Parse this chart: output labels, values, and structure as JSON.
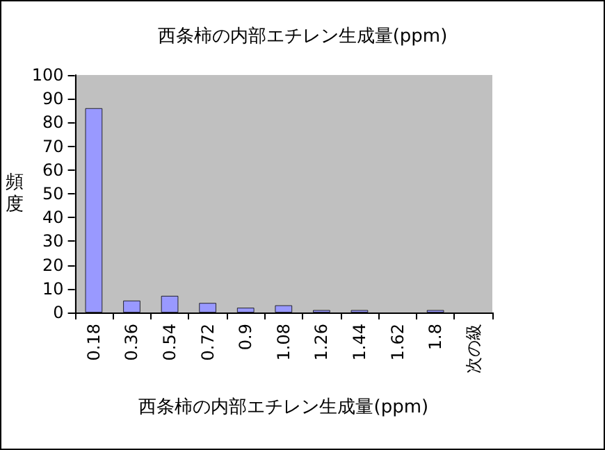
{
  "chart_data": {
    "type": "bar",
    "title": "西条柿の内部エチレン生成量(ppm)",
    "xlabel": "西条柿の内部エチレン生成量(ppm)",
    "ylabel": "頻度",
    "categories": [
      "0.18",
      "0.36",
      "0.54",
      "0.72",
      "0.9",
      "1.08",
      "1.26",
      "1.44",
      "1.62",
      "1.8",
      "次の級"
    ],
    "values": [
      86,
      5,
      7,
      4,
      2,
      3,
      1,
      1,
      0,
      1,
      0
    ],
    "color": "#9999ff",
    "ylim": [
      0,
      100
    ],
    "yticks": [
      0,
      10,
      20,
      30,
      40,
      50,
      60,
      70,
      80,
      90,
      100
    ],
    "grid": false
  }
}
